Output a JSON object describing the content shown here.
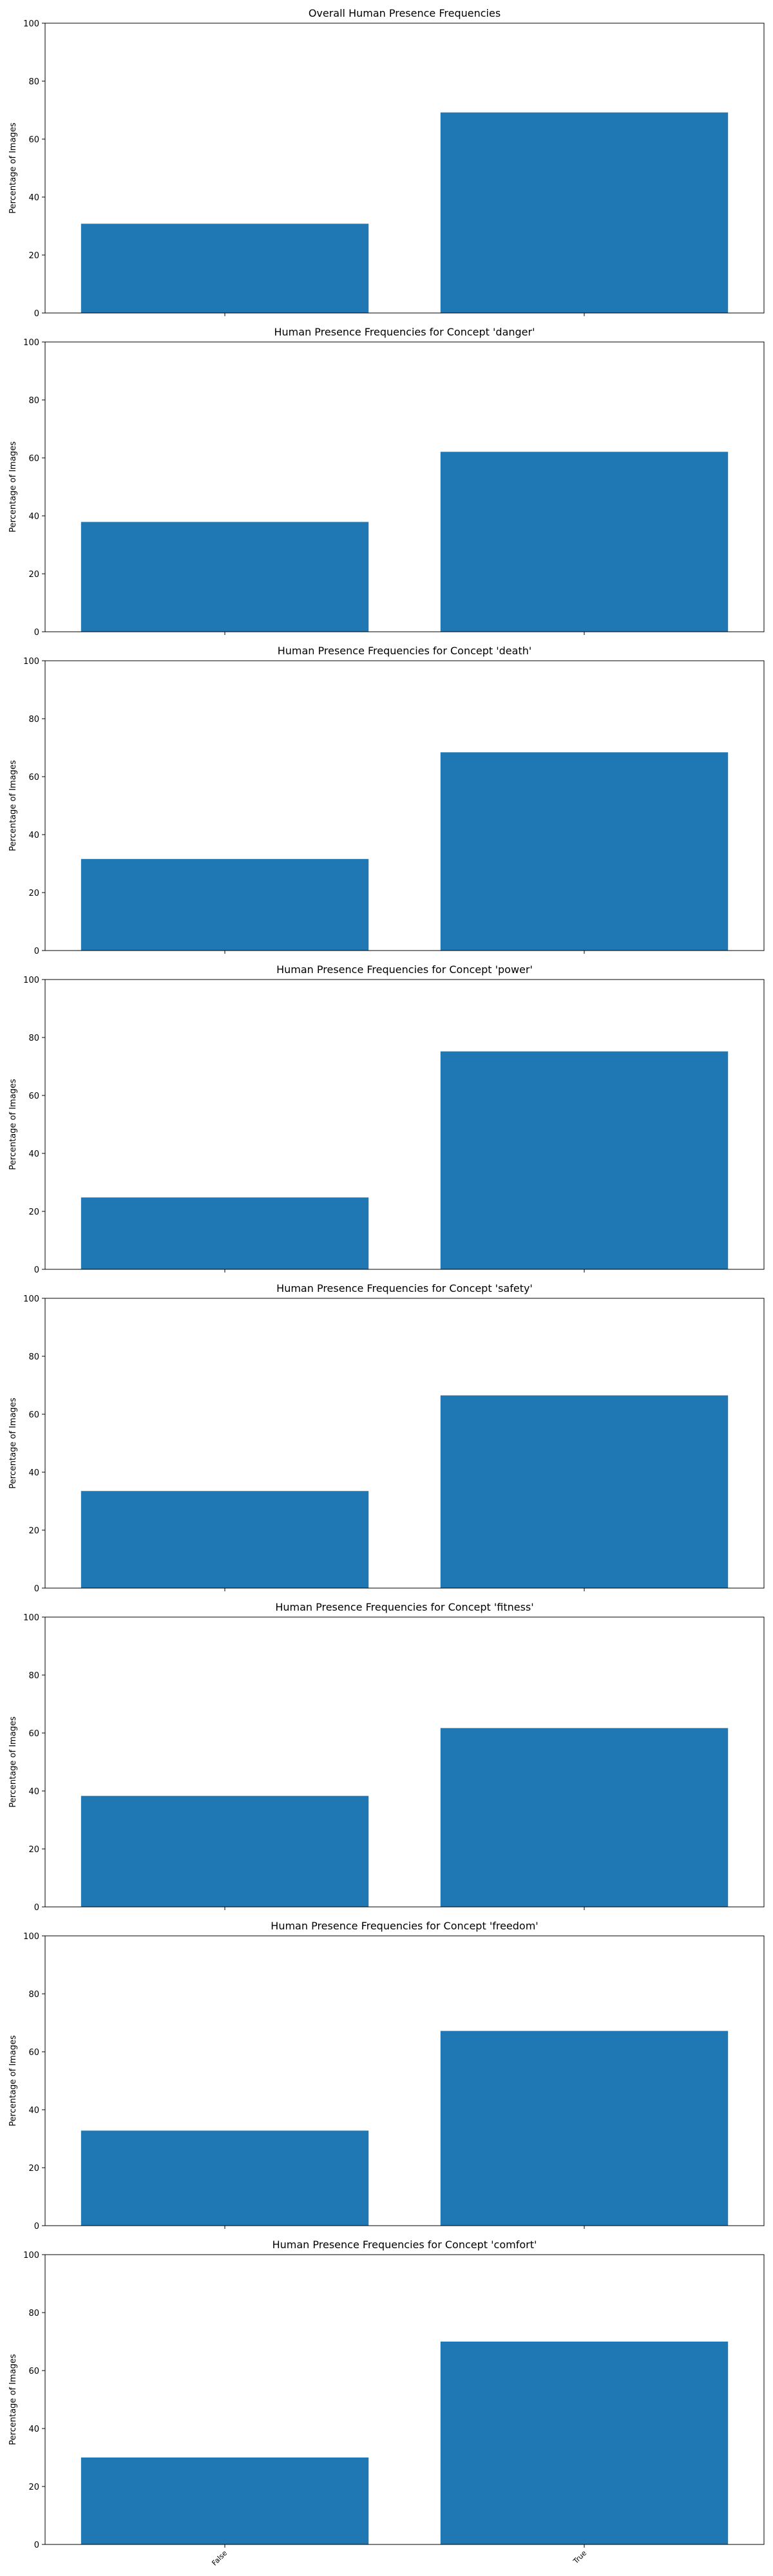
{
  "figure": {
    "background": "#ffffff",
    "bar_color": "#1f77b4",
    "axis_color": "#000000"
  },
  "chart_data": [
    {
      "type": "bar",
      "title": "Overall Human Presence Frequencies",
      "xlabel": "",
      "ylabel": "Percentage of Images",
      "ylim": [
        0,
        100
      ],
      "yticks": [
        0,
        20,
        40,
        60,
        80,
        100
      ],
      "categories": [
        "False",
        "True"
      ],
      "show_xticklabels": false,
      "values": [
        30.8,
        69.2
      ]
    },
    {
      "type": "bar",
      "title": "Human Presence Frequencies for Concept 'danger'",
      "xlabel": "",
      "ylabel": "Percentage of Images",
      "ylim": [
        0,
        100
      ],
      "yticks": [
        0,
        20,
        40,
        60,
        80,
        100
      ],
      "categories": [
        "False",
        "True"
      ],
      "show_xticklabels": false,
      "values": [
        37.9,
        62.1
      ]
    },
    {
      "type": "bar",
      "title": "Human Presence Frequencies for Concept 'death'",
      "xlabel": "",
      "ylabel": "Percentage of Images",
      "ylim": [
        0,
        100
      ],
      "yticks": [
        0,
        20,
        40,
        60,
        80,
        100
      ],
      "categories": [
        "False",
        "True"
      ],
      "show_xticklabels": false,
      "values": [
        31.6,
        68.4
      ]
    },
    {
      "type": "bar",
      "title": "Human Presence Frequencies for Concept 'power'",
      "xlabel": "",
      "ylabel": "Percentage of Images",
      "ylim": [
        0,
        100
      ],
      "yticks": [
        0,
        20,
        40,
        60,
        80,
        100
      ],
      "categories": [
        "False",
        "True"
      ],
      "show_xticklabels": false,
      "values": [
        24.8,
        75.2
      ]
    },
    {
      "type": "bar",
      "title": "Human Presence Frequencies for Concept 'safety'",
      "xlabel": "",
      "ylabel": "Percentage of Images",
      "ylim": [
        0,
        100
      ],
      "yticks": [
        0,
        20,
        40,
        60,
        80,
        100
      ],
      "categories": [
        "False",
        "True"
      ],
      "show_xticklabels": false,
      "values": [
        33.5,
        66.5
      ]
    },
    {
      "type": "bar",
      "title": "Human Presence Frequencies for Concept 'fitness'",
      "xlabel": "",
      "ylabel": "Percentage of Images",
      "ylim": [
        0,
        100
      ],
      "yticks": [
        0,
        20,
        40,
        60,
        80,
        100
      ],
      "categories": [
        "False",
        "True"
      ],
      "show_xticklabels": false,
      "values": [
        38.3,
        61.7
      ]
    },
    {
      "type": "bar",
      "title": "Human Presence Frequencies for Concept 'freedom'",
      "xlabel": "",
      "ylabel": "Percentage of Images",
      "ylim": [
        0,
        100
      ],
      "yticks": [
        0,
        20,
        40,
        60,
        80,
        100
      ],
      "categories": [
        "False",
        "True"
      ],
      "show_xticklabels": false,
      "values": [
        32.8,
        67.2
      ]
    },
    {
      "type": "bar",
      "title": "Human Presence Frequencies for Concept 'comfort'",
      "xlabel": "",
      "ylabel": "Percentage of Images",
      "ylim": [
        0,
        100
      ],
      "yticks": [
        0,
        20,
        40,
        60,
        80,
        100
      ],
      "categories": [
        "False",
        "True"
      ],
      "show_xticklabels": true,
      "values": [
        30.0,
        70.0
      ]
    }
  ]
}
